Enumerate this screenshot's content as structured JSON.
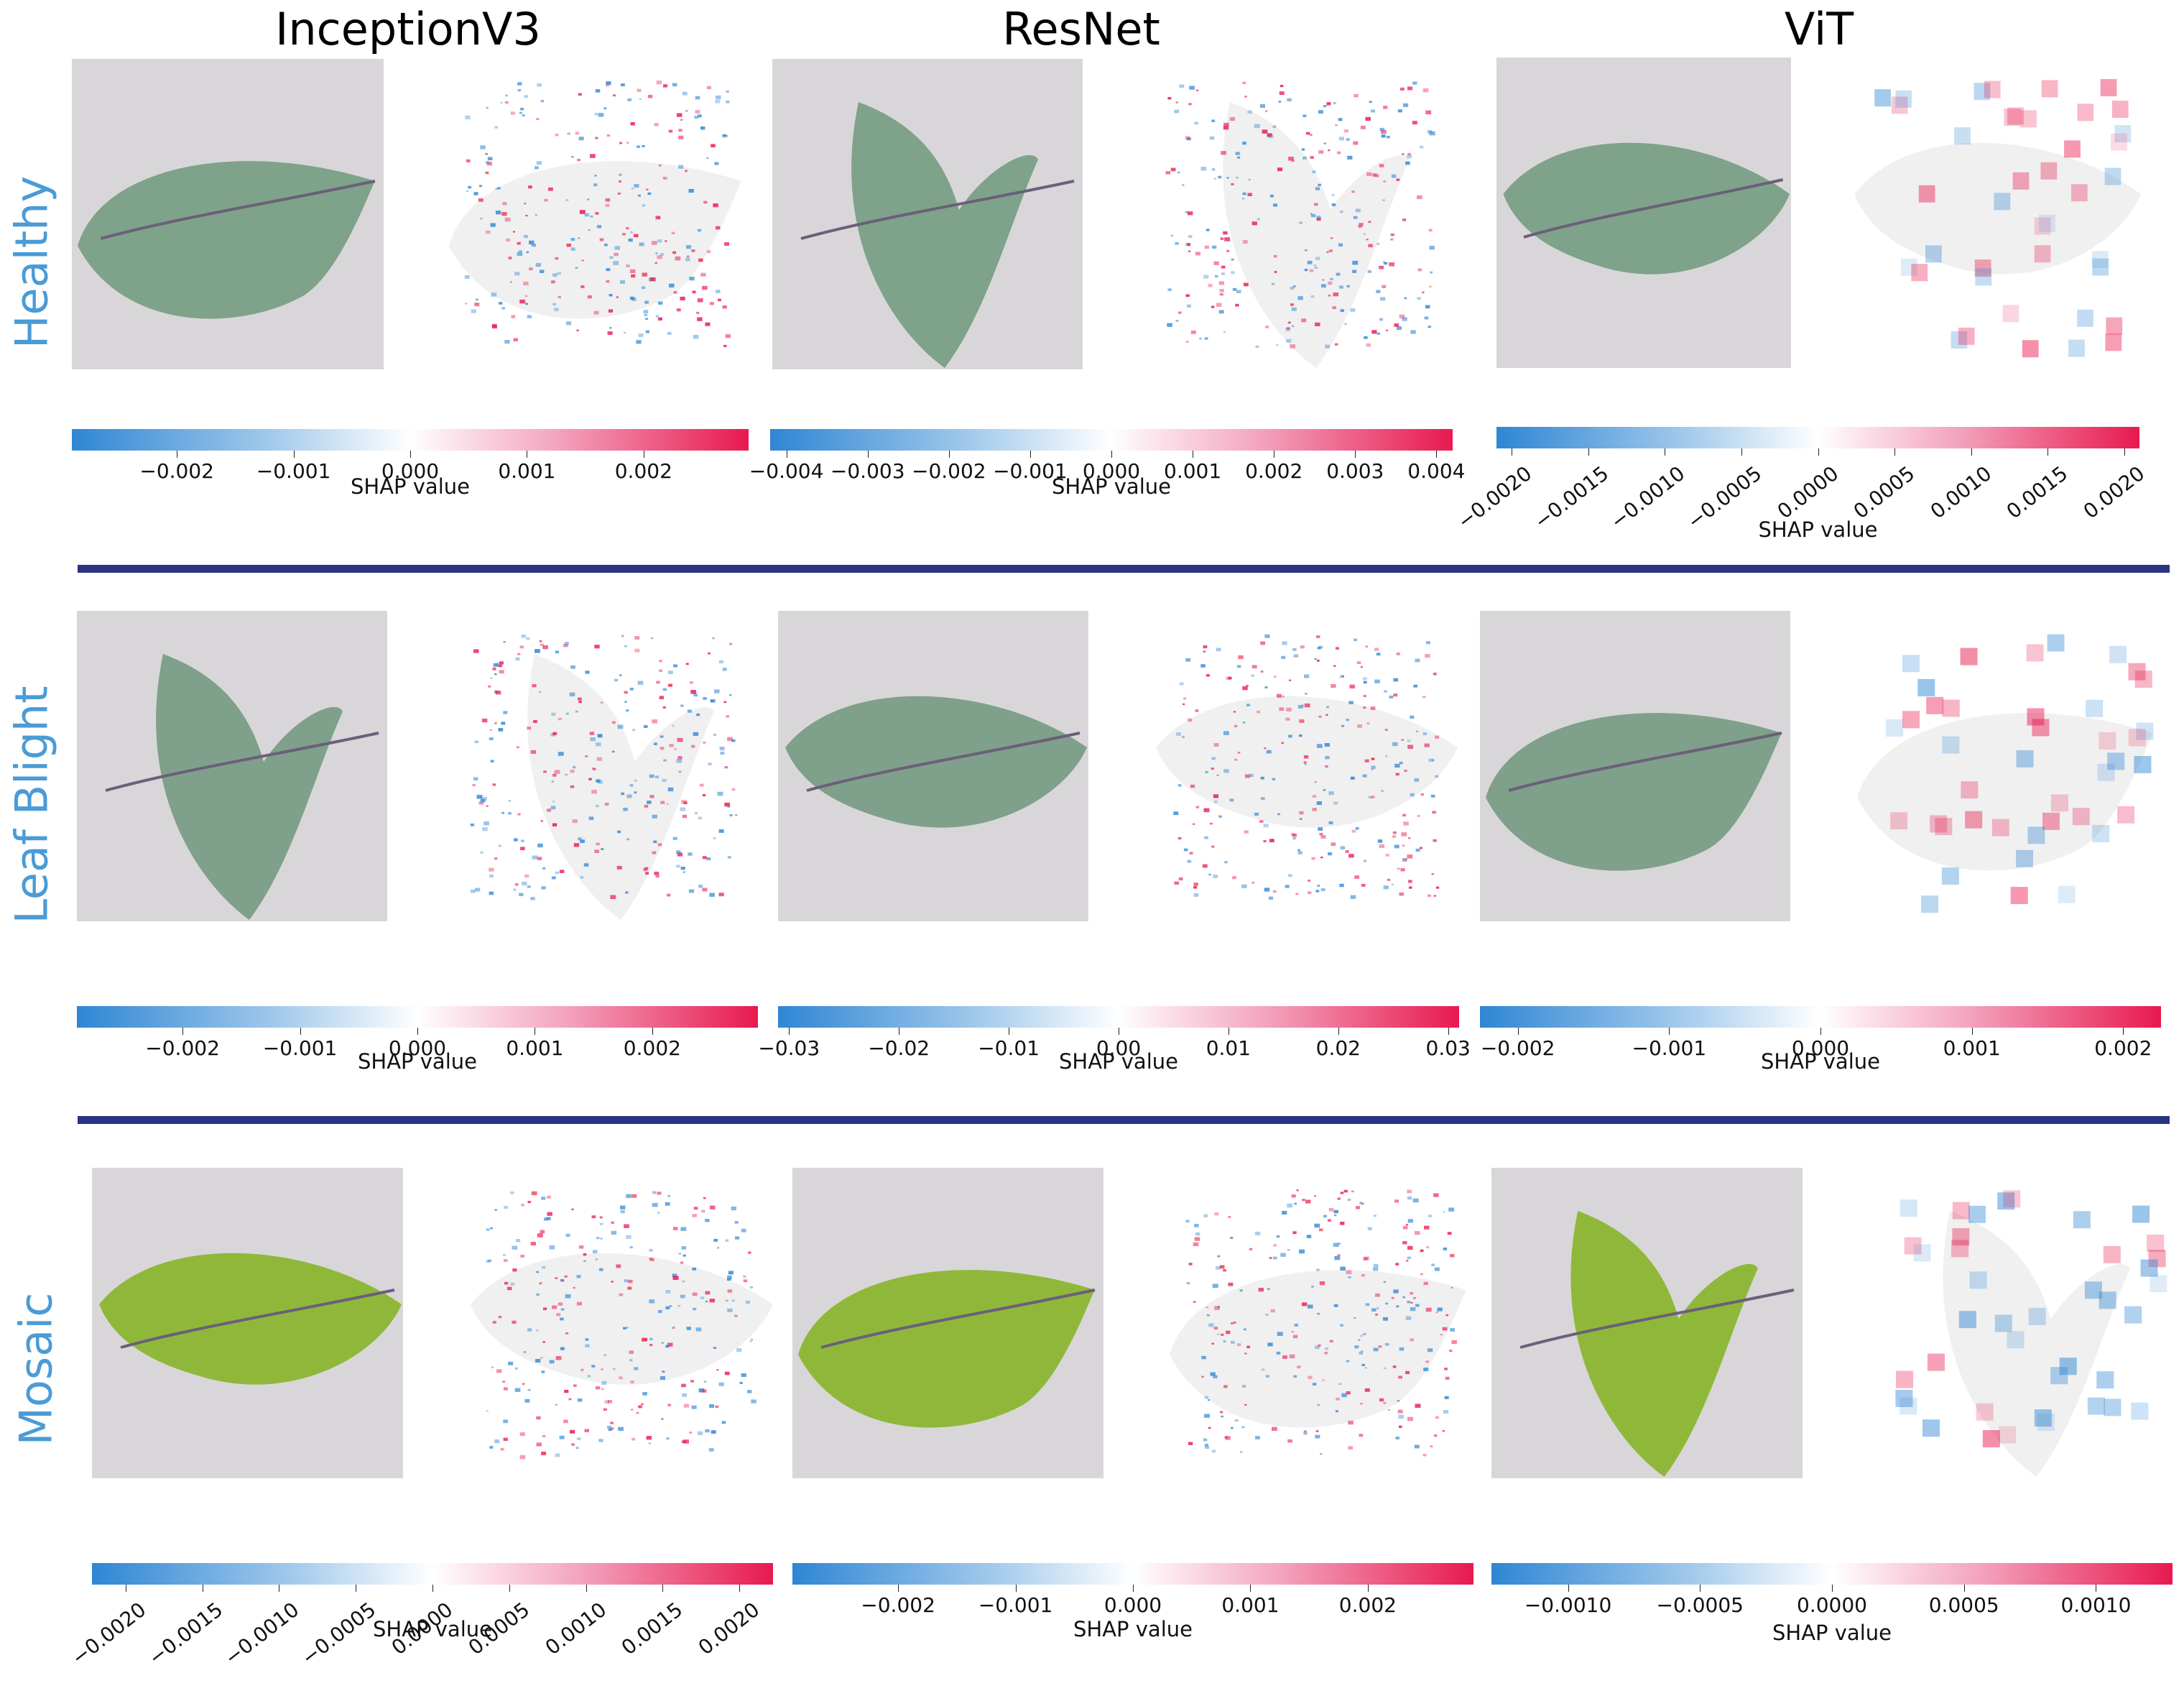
{
  "columns": [
    {
      "model": "InceptionV3"
    },
    {
      "model": "ResNet"
    },
    {
      "model": "ViT"
    }
  ],
  "rows": [
    {
      "label": "Healthy",
      "colorbars": [
        {
          "label": "SHAP value",
          "range": [
            -0.0029,
            0.0029
          ],
          "ticks": [
            "−0.002",
            "−0.001",
            "0.000",
            "0.001",
            "0.002"
          ],
          "tick_values": [
            -0.002,
            -0.001,
            0,
            0.001,
            0.002
          ],
          "rotated": false
        },
        {
          "label": "SHAP value",
          "range": [
            -0.0042,
            0.0042
          ],
          "ticks": [
            "−0.004",
            "−0.003",
            "−0.002",
            "−0.001",
            "0.000",
            "0.001",
            "0.002",
            "0.003",
            "0.004"
          ],
          "tick_values": [
            -0.004,
            -0.003,
            -0.002,
            -0.001,
            0,
            0.001,
            0.002,
            0.003,
            0.004
          ],
          "rotated": false
        },
        {
          "label": "SHAP value",
          "range": [
            -0.0021,
            0.0021
          ],
          "ticks": [
            "−0.0020",
            "−0.0015",
            "−0.0010",
            "−0.0005",
            "0.0000",
            "0.0005",
            "0.0010",
            "0.0015",
            "0.0020"
          ],
          "tick_values": [
            -0.002,
            -0.0015,
            -0.001,
            -0.0005,
            0,
            0.0005,
            0.001,
            0.0015,
            0.002
          ],
          "rotated": true
        }
      ]
    },
    {
      "label": "Leaf Blight",
      "colorbars": [
        {
          "label": "SHAP value",
          "range": [
            -0.0029,
            0.0029
          ],
          "ticks": [
            "−0.002",
            "−0.001",
            "0.000",
            "0.001",
            "0.002"
          ],
          "tick_values": [
            -0.002,
            -0.001,
            0,
            0.001,
            0.002
          ],
          "rotated": false
        },
        {
          "label": "SHAP value",
          "range": [
            -0.031,
            0.031
          ],
          "ticks": [
            "−0.03",
            "−0.02",
            "−0.01",
            "0.00",
            "0.01",
            "0.02",
            "0.03"
          ],
          "tick_values": [
            -0.03,
            -0.02,
            -0.01,
            0,
            0.01,
            0.02,
            0.03
          ],
          "rotated": false
        },
        {
          "label": "SHAP value",
          "range": [
            -0.00225,
            0.00225
          ],
          "ticks": [
            "−0.002",
            "−0.001",
            "0.000",
            "0.001",
            "0.002"
          ],
          "tick_values": [
            -0.002,
            -0.001,
            0,
            0.001,
            0.002
          ],
          "rotated": false
        }
      ]
    },
    {
      "label": "Mosaic",
      "colorbars": [
        {
          "label": "SHAP value",
          "range": [
            -0.00222,
            0.00222
          ],
          "ticks": [
            "−0.0020",
            "−0.0015",
            "−0.0010",
            "−0.0005",
            "0.0000",
            "0.0005",
            "0.0010",
            "0.0015",
            "0.0020"
          ],
          "tick_values": [
            -0.002,
            -0.0015,
            -0.001,
            -0.0005,
            0,
            0.0005,
            0.001,
            0.0015,
            0.002
          ],
          "rotated": true
        },
        {
          "label": "SHAP value",
          "range": [
            -0.0029,
            0.0029
          ],
          "ticks": [
            "−0.002",
            "−0.001",
            "0.000",
            "0.001",
            "0.002"
          ],
          "tick_values": [
            -0.002,
            -0.001,
            0,
            0.001,
            0.002
          ],
          "rotated": false
        },
        {
          "label": "SHAP value",
          "range": [
            -0.00129,
            0.00129
          ],
          "ticks": [
            "−0.0010",
            "−0.0005",
            "0.0000",
            "0.0005",
            "0.0010"
          ],
          "tick_values": [
            -0.001,
            -0.0005,
            0,
            0.0005,
            0.001
          ],
          "rotated": false
        }
      ]
    }
  ],
  "colors": {
    "row_label": "#4a9bd6",
    "divider": "#2b3383",
    "negative": "#2f86d4",
    "positive": "#e8194f",
    "leaf_healthy": "#7fa28a",
    "leaf_blight": "#7fa08a",
    "leaf_mosaic": "#8fb83a",
    "background_photo": "#d9d6d9"
  }
}
